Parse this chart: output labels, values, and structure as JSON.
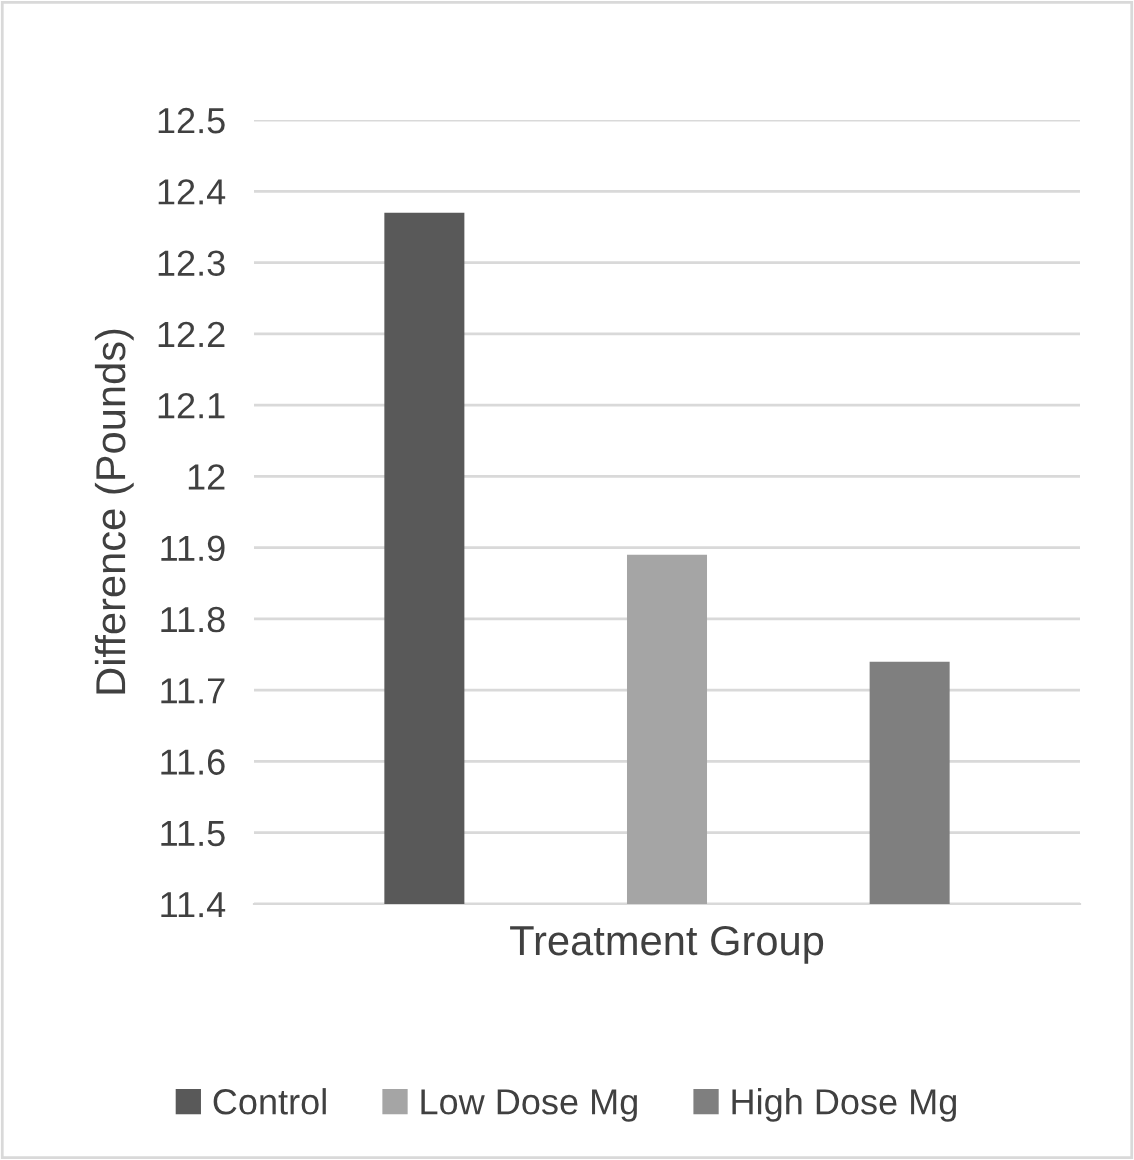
{
  "chart_data": {
    "type": "bar",
    "xlabel": "Treatment Group",
    "ylabel": "Difference (Pounds)",
    "categories": [
      null
    ],
    "series": [
      {
        "name": "Control",
        "color": "#595959",
        "values": [
          12.37
        ]
      },
      {
        "name": "Low Dose Mg",
        "color": "#a5a5a5",
        "values": [
          11.89
        ]
      },
      {
        "name": "High Dose Mg",
        "color": "#7f7f7f",
        "values": [
          11.74
        ]
      }
    ],
    "ylim": [
      11.4,
      12.5
    ],
    "yticks": [
      11.4,
      11.5,
      11.6,
      11.7,
      11.8,
      11.9,
      12,
      12.1,
      12.2,
      12.3,
      12.4,
      12.5
    ],
    "grid": "y",
    "legend": "bottom"
  }
}
